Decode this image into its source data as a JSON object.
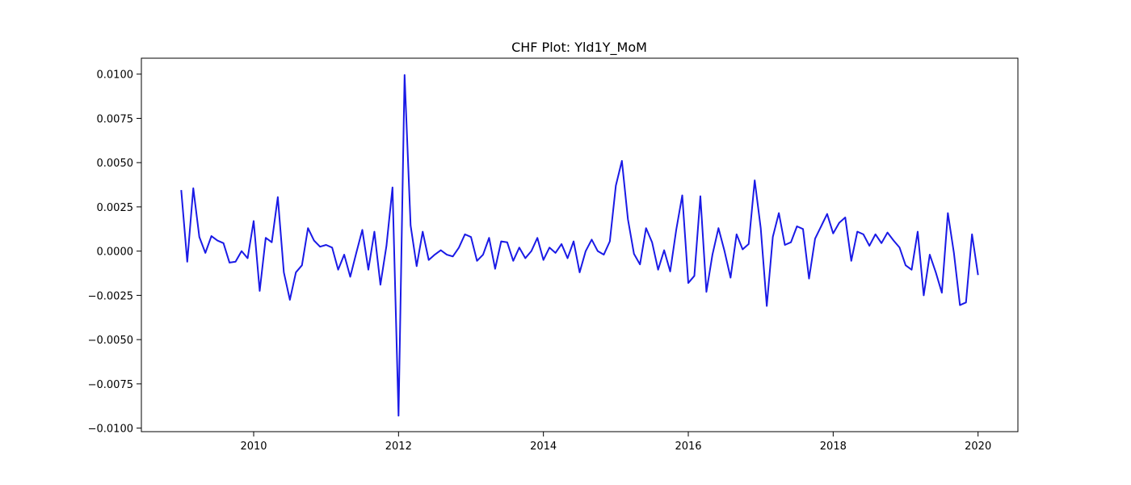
{
  "chart_data": {
    "type": "line",
    "title": "CHF Plot: Yld1Y_MoM",
    "xlabel": "",
    "ylabel": "",
    "xlim": [
      2008.45,
      2020.55
    ],
    "ylim": [
      -0.0102,
      0.0109
    ],
    "x_ticks": [
      2010,
      2012,
      2014,
      2016,
      2018,
      2020
    ],
    "x_tick_labels": [
      "2010",
      "2012",
      "2014",
      "2016",
      "2018",
      "2020"
    ],
    "y_ticks": [
      -0.01,
      -0.0075,
      -0.005,
      -0.0025,
      0,
      0.0025,
      0.005,
      0.0075,
      0.01
    ],
    "y_tick_labels": [
      "−0.0100",
      "−0.0075",
      "−0.0050",
      "−0.0025",
      "0.0000",
      "0.0025",
      "0.0050",
      "0.0075",
      "0.0100"
    ],
    "grid": false,
    "legend": "none",
    "x_start": "2009-01",
    "x_end": "2020-01",
    "frequency": "monthly",
    "series": [
      {
        "color": "#1a1ae6",
        "values": [
          0.00345,
          -0.0006,
          0.00355,
          0.0008,
          -0.0001,
          0.00085,
          0.0006,
          0.00045,
          -0.00065,
          -0.0006,
          0.0,
          -0.0004,
          0.0017,
          -0.00225,
          0.00075,
          0.0005,
          0.00305,
          -0.0012,
          -0.00275,
          -0.0012,
          -0.0008,
          0.0013,
          0.0006,
          0.00025,
          0.00035,
          0.0002,
          -0.00105,
          -0.0002,
          -0.00145,
          -0.0001,
          0.0012,
          -0.00105,
          0.0011,
          -0.0019,
          0.0003,
          0.0036,
          -0.0093,
          0.00995,
          0.00145,
          -0.00085,
          0.0011,
          -0.0005,
          -0.0002,
          5e-05,
          -0.0002,
          -0.0003,
          0.0002,
          0.00095,
          0.0008,
          -0.00055,
          -0.0002,
          0.00075,
          -0.001,
          0.00055,
          0.0005,
          -0.00055,
          0.0002,
          -0.0004,
          0.0,
          0.00075,
          -0.0005,
          0.0002,
          -0.0001,
          0.0004,
          -0.0004,
          0.00055,
          -0.0012,
          0.0,
          0.00065,
          0.0,
          -0.0002,
          0.00055,
          0.0037,
          0.0051,
          0.0018,
          -0.00015,
          -0.00075,
          0.0013,
          0.0005,
          -0.00105,
          5e-05,
          -0.00115,
          0.0012,
          0.00315,
          -0.0018,
          -0.0014,
          0.0031,
          -0.0023,
          -0.0002,
          0.0013,
          0.0,
          -0.0015,
          0.00095,
          0.0001,
          0.0004,
          0.004,
          0.0013,
          -0.0031,
          0.0008,
          0.00215,
          0.00035,
          0.0005,
          0.0014,
          0.00125,
          -0.00155,
          0.0007,
          0.0014,
          0.0021,
          0.001,
          0.0016,
          0.0019,
          -0.00055,
          0.0011,
          0.00095,
          0.0003,
          0.00095,
          0.00045,
          0.00105,
          0.0006,
          0.0002,
          -0.0008,
          -0.00105,
          0.0011,
          -0.0025,
          -0.0002,
          -0.0012,
          -0.00235,
          0.00215,
          -0.0001,
          -0.00305,
          -0.0029,
          0.00095,
          -0.00135
        ]
      }
    ]
  }
}
